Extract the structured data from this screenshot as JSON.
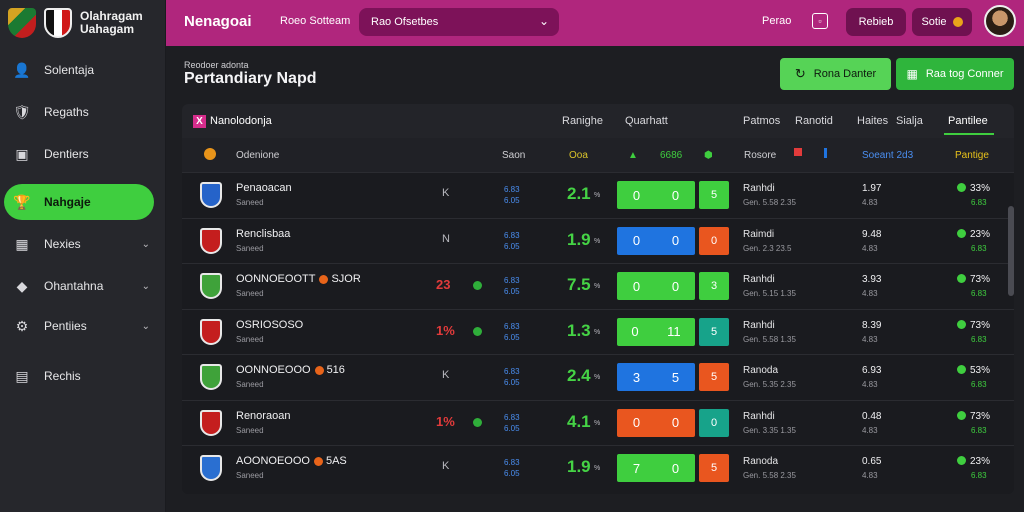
{
  "brand": {
    "line1": "Olahragam",
    "line2": "Uahagam"
  },
  "sidebar": {
    "items": [
      {
        "label": "Solentaja",
        "icon": "person-icon",
        "glyph": "👤"
      },
      {
        "label": "Regaths",
        "icon": "shield-icon",
        "glyph": "🛡"
      },
      {
        "label": "Dentiers",
        "icon": "calendar-icon",
        "glyph": "▣"
      },
      {
        "label": "Nahgaje",
        "icon": "trophy-icon",
        "glyph": "🏆",
        "active": true
      },
      {
        "label": "Nexies",
        "icon": "grid-icon",
        "glyph": "▦",
        "chevron": "⌄"
      },
      {
        "label": "Ohantahna",
        "icon": "shirt-icon",
        "glyph": "◆",
        "chevron": "⌄"
      },
      {
        "label": "Pentiies",
        "icon": "settings-icon",
        "glyph": "⚙",
        "chevron": "⌄"
      },
      {
        "label": "Rechis",
        "icon": "report-icon",
        "glyph": "▤"
      }
    ]
  },
  "topbar": {
    "title": "Nenagoai",
    "link": "Roeo Sotteam",
    "select_value": "Rao Ofsetbes",
    "period": "Perao",
    "buttons": [
      "Rebieb",
      "Sotie"
    ]
  },
  "page": {
    "crumb": "Reodoer adonta",
    "title": "Pertandiary Napd",
    "actions": [
      "Rona Danter",
      "Raa tog Conner"
    ]
  },
  "table": {
    "tabs": [
      "Nanolodonja",
      "Ranighe",
      "Quarhatt",
      "Patmos",
      "Ranotid",
      "Haites",
      "Sialja",
      "Pantilee"
    ],
    "head": [
      "Odenione",
      "Saon",
      "Ooa",
      "6686",
      "Rosore",
      "Soeant 2d3",
      "Pantige"
    ],
    "rows": [
      {
        "team": "Penaoacan",
        "sub": "Saneed",
        "mark": "K",
        "n1": "6.83",
        "n2": "6.05",
        "big": "2.1",
        "s1": "0",
        "s2": "0",
        "s3": "5",
        "stat": "Ranhdi",
        "statb": "Gen. 5.58 2.35",
        "v1": "1.97",
        "v2": "4.83",
        "pct": "33%",
        "pctb": "6.83",
        "c1": "#3fce3f",
        "c2": "#3fce3f",
        "crest": "#2563c9"
      },
      {
        "team": "Renclisbaa",
        "sub": "Saneed",
        "mark": "N",
        "n1": "6.83",
        "n2": "6.05",
        "big": "1.9",
        "s1": "0",
        "s2": "0",
        "s3": "0",
        "stat": "Raimdi",
        "statb": "Gen. 2.3 23.5",
        "v1": "9.48",
        "v2": "4.83",
        "pct": "23%",
        "pctb": "6.83",
        "c1": "#1f74e0",
        "c2": "#e9561f",
        "crest": "#c41e1e"
      },
      {
        "team": "OONNOEOOTT",
        "tag": "SJOR",
        "sub": "Saneed",
        "rank": "23",
        "n1": "6.83",
        "n2": "6.05",
        "big": "7.5",
        "s1": "0",
        "s2": "0",
        "s3": "3",
        "stat": "Ranhdi",
        "statb": "Gen. 5.15 1.35",
        "v1": "3.93",
        "v2": "4.83",
        "pct": "73%",
        "pctb": "6.83",
        "c1": "#3fce3f",
        "c2": "#3fce3f",
        "crest": "#3fa23a"
      },
      {
        "team": "OSRIOSOSO",
        "sub": "Saneed",
        "rank": "1%",
        "n1": "6.83",
        "n2": "6.05",
        "big": "1.3",
        "s1": "0",
        "s2": "11",
        "s3": "5",
        "stat": "Ranhdi",
        "statb": "Gen. 5.58 1.35",
        "v1": "8.39",
        "v2": "4.83",
        "pct": "73%",
        "pctb": "6.83",
        "c1": "#3fce3f",
        "c2": "#17a38a",
        "crest": "#c41e1e"
      },
      {
        "team": "OONNOEOOO",
        "tag": "516",
        "sub": "Saneed",
        "mark": "K",
        "n1": "6.83",
        "n2": "6.05",
        "big": "2.4",
        "s1": "3",
        "s2": "5",
        "s3": "5",
        "stat": "Ranoda",
        "statb": "Gen. 5.35 2.35",
        "v1": "6.93",
        "v2": "4.83",
        "pct": "53%",
        "pctb": "6.83",
        "c1": "#1f74e0",
        "c2": "#e9561f",
        "crest": "#3fa23a"
      },
      {
        "team": "Renoraoan",
        "sub": "Saneed",
        "rank": "1%",
        "n1": "6.83",
        "n2": "6.05",
        "big": "4.1",
        "s1": "0",
        "s2": "0",
        "s3": "0",
        "stat": "Ranhdi",
        "statb": "Gen. 3.35 1.35",
        "v1": "0.48",
        "v2": "4.83",
        "pct": "73%",
        "pctb": "6.83",
        "c1": "#e9561f",
        "c2": "#17a38a",
        "crest": "#c41e1e"
      },
      {
        "team": "AOONOEOOO",
        "tag": "5AS",
        "sub": "Saneed",
        "mark": "K",
        "n1": "6.83",
        "n2": "6.05",
        "big": "1.9",
        "s1": "7",
        "s2": "0",
        "s3": "5",
        "stat": "Ranoda",
        "statb": "Gen. 5.58 2.35",
        "v1": "0.65",
        "v2": "4.83",
        "pct": "23%",
        "pctb": "6.83",
        "c1": "#3fce3f",
        "c2": "#e9561f",
        "crest": "#2a6fd1"
      }
    ]
  }
}
